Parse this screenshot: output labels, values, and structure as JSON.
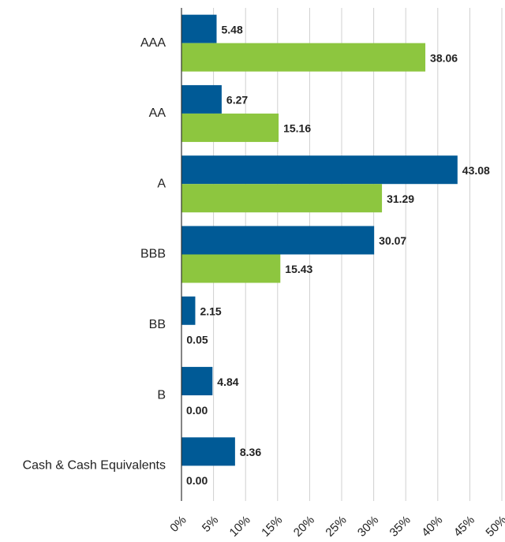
{
  "chart_data": {
    "type": "bar",
    "categories": [
      "AAA",
      "AA",
      "A",
      "BBB",
      "BB",
      "B",
      "Cash & Cash Equivalents"
    ],
    "series": [
      {
        "color": "#005a96",
        "values": [
          5.48,
          6.27,
          43.08,
          30.07,
          2.15,
          4.84,
          8.36
        ],
        "value_labels": [
          "5.48",
          "6.27",
          "43.08",
          "30.07",
          "2.15",
          "4.84",
          "8.36"
        ]
      },
      {
        "color": "#8dc63f",
        "values": [
          38.06,
          15.16,
          31.29,
          15.43,
          0.05,
          0,
          0
        ],
        "value_labels": [
          "38.06",
          "15.16",
          "31.29",
          "15.43",
          "0.05",
          "0.00",
          "0.00"
        ]
      }
    ],
    "xlim": [
      0,
      50
    ],
    "xticks": [
      {
        "value": 0,
        "label": "0%"
      },
      {
        "value": 5,
        "label": "5%"
      },
      {
        "value": 10,
        "label": "10%"
      },
      {
        "value": 15,
        "label": "15%"
      },
      {
        "value": 20,
        "label": "20%"
      },
      {
        "value": 25,
        "label": "25%"
      },
      {
        "value": 30,
        "label": "30%"
      },
      {
        "value": 35,
        "label": "35%"
      },
      {
        "value": 40,
        "label": "40%"
      },
      {
        "value": 45,
        "label": "45%"
      },
      {
        "value": 50,
        "label": "50%"
      }
    ],
    "grid": true
  }
}
